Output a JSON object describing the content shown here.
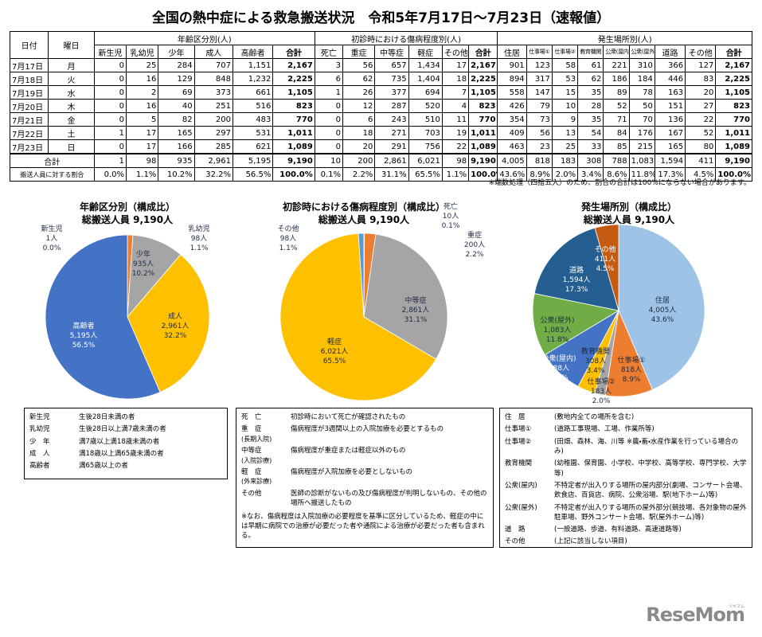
{
  "title": "全国の熱中症による救急搬送状況　令和5年7月17日～7月23日（速報値）",
  "table": {
    "corner": [
      "日付",
      "曜日"
    ],
    "groups": [
      {
        "label": "年齢区分別(人)",
        "columns": [
          "新生児",
          "乳幼児",
          "少年",
          "成人",
          "高齢者",
          "合計"
        ]
      },
      {
        "label": "初診時における傷病程度別(人)",
        "columns": [
          "死亡",
          "重症",
          "中等症",
          "軽症",
          "その他",
          "合計"
        ]
      },
      {
        "label": "発生場所別(人)",
        "columns": [
          "住居",
          "仕事場①",
          "仕事場②",
          "教育機関",
          "公衆(屋内)",
          "公衆(屋外)",
          "道路",
          "その他",
          "合計"
        ]
      }
    ],
    "rows": [
      {
        "date": "7月17日",
        "weekday": "月",
        "values": [
          "0",
          "25",
          "284",
          "707",
          "1,151",
          "2,167",
          "3",
          "56",
          "657",
          "1,434",
          "17",
          "2,167",
          "901",
          "123",
          "58",
          "61",
          "221",
          "310",
          "366",
          "127",
          "2,167"
        ]
      },
      {
        "date": "7月18日",
        "weekday": "火",
        "values": [
          "0",
          "16",
          "129",
          "848",
          "1,232",
          "2,225",
          "6",
          "62",
          "735",
          "1,404",
          "18",
          "2,225",
          "894",
          "317",
          "53",
          "62",
          "186",
          "184",
          "446",
          "83",
          "2,225"
        ]
      },
      {
        "date": "7月19日",
        "weekday": "水",
        "values": [
          "0",
          "2",
          "69",
          "373",
          "661",
          "1,105",
          "1",
          "26",
          "377",
          "694",
          "7",
          "1,105",
          "558",
          "147",
          "15",
          "35",
          "89",
          "78",
          "163",
          "20",
          "1,105"
        ]
      },
      {
        "date": "7月20日",
        "weekday": "木",
        "values": [
          "0",
          "16",
          "40",
          "251",
          "516",
          "823",
          "0",
          "12",
          "287",
          "520",
          "4",
          "823",
          "426",
          "79",
          "10",
          "28",
          "52",
          "50",
          "151",
          "27",
          "823"
        ]
      },
      {
        "date": "7月21日",
        "weekday": "金",
        "values": [
          "0",
          "5",
          "82",
          "200",
          "483",
          "770",
          "0",
          "6",
          "243",
          "510",
          "11",
          "770",
          "354",
          "73",
          "9",
          "35",
          "71",
          "70",
          "136",
          "22",
          "770"
        ]
      },
      {
        "date": "7月22日",
        "weekday": "土",
        "values": [
          "1",
          "17",
          "165",
          "297",
          "531",
          "1,011",
          "0",
          "18",
          "271",
          "703",
          "19",
          "1,011",
          "409",
          "56",
          "13",
          "54",
          "84",
          "176",
          "167",
          "52",
          "1,011"
        ]
      },
      {
        "date": "7月23日",
        "weekday": "日",
        "values": [
          "0",
          "17",
          "166",
          "285",
          "621",
          "1,089",
          "0",
          "20",
          "291",
          "756",
          "22",
          "1,089",
          "463",
          "23",
          "25",
          "33",
          "85",
          "215",
          "165",
          "80",
          "1,089"
        ]
      }
    ],
    "total": {
      "label": "合計",
      "values": [
        "1",
        "98",
        "935",
        "2,961",
        "5,195",
        "9,190",
        "10",
        "200",
        "2,861",
        "6,021",
        "98",
        "9,190",
        "4,005",
        "818",
        "183",
        "308",
        "788",
        "1,083",
        "1,594",
        "411",
        "9,190"
      ]
    },
    "share": {
      "label": "搬送人員に対する割合",
      "values": [
        "0.0%",
        "1.1%",
        "10.2%",
        "32.2%",
        "56.5%",
        "100.0%",
        "0.1%",
        "2.2%",
        "31.1%",
        "65.5%",
        "1.1%",
        "100.0%",
        "43.6%",
        "8.9%",
        "2.0%",
        "3.4%",
        "8.6%",
        "11.8%",
        "17.3%",
        "4.5%",
        "100.0%"
      ]
    }
  },
  "note": "※端数処理（四捨五入）のため、割合の合計は100%にならない場合があります。",
  "chart_data": [
    {
      "type": "pie",
      "title": "年齢区分別（構成比）",
      "subtitle": "総搬送人員 9,190人",
      "categories": [
        "新生児",
        "乳幼児",
        "少年",
        "成人",
        "高齢者"
      ],
      "values": [
        1,
        98,
        935,
        2961,
        5195
      ],
      "value_labels": [
        "1人",
        "98人",
        "935人",
        "2,961人",
        "5,195人"
      ],
      "percent_labels": [
        "0.0%",
        "1.1%",
        "10.2%",
        "32.2%",
        "56.5%"
      ],
      "colors": [
        "#a5a5a5",
        "#ed7d31",
        "#a5a5a5",
        "#ffc000",
        "#4472c4"
      ]
    },
    {
      "type": "pie",
      "title": "初診時における傷病程度別（構成比）",
      "subtitle": "総搬送人員 9,190人",
      "categories": [
        "死亡",
        "重症",
        "中等症",
        "軽症",
        "その他"
      ],
      "values": [
        10,
        200,
        2861,
        6021,
        98
      ],
      "value_labels": [
        "10人",
        "200人",
        "2,861人",
        "6,021人",
        "98人"
      ],
      "percent_labels": [
        "0.1%",
        "2.2%",
        "31.1%",
        "65.5%",
        "1.1%"
      ],
      "colors": [
        "#4472c4",
        "#ed7d31",
        "#a5a5a5",
        "#ffc000",
        "#5b9bd5"
      ]
    },
    {
      "type": "pie",
      "title": "発生場所別（構成比）",
      "subtitle": "総搬送人員 9,190人",
      "categories": [
        "住居",
        "仕事場①",
        "仕事場②",
        "教育機関",
        "公衆(屋内)",
        "公衆(屋外)",
        "道路",
        "その他"
      ],
      "values": [
        4005,
        818,
        183,
        308,
        788,
        1083,
        1594,
        411
      ],
      "value_labels": [
        "4,005人",
        "818人",
        "183人",
        "308人",
        "788人",
        "1,083人",
        "1,594人",
        "411人"
      ],
      "percent_labels": [
        "43.6%",
        "8.9%",
        "2.0%",
        "3.4%",
        "8.6%",
        "11.8%",
        "17.3%",
        "4.5%"
      ],
      "colors": [
        "#9dc3e6",
        "#ed7d31",
        "#a5a5a5",
        "#ffc000",
        "#4472c4",
        "#70ad47",
        "#255e91",
        "#c55a11"
      ]
    }
  ],
  "definitions": [
    {
      "items": [
        {
          "term": "新生児",
          "text": "生後28日未満の者"
        },
        {
          "term": "乳幼児",
          "text": "生後28日以上満7歳未満の者"
        },
        {
          "term": "少　年",
          "text": "満7歳以上満18歳未満の者"
        },
        {
          "term": "成　人",
          "text": "満18歳以上満65歳未満の者"
        },
        {
          "term": "高齢者",
          "text": "満65歳以上の者"
        }
      ]
    },
    {
      "items": [
        {
          "term": "死　亡",
          "text": "初診時において死亡が確認されたもの"
        },
        {
          "term": "重　症",
          "sub": "(長期入院)",
          "text": "傷病程度が3週間以上の入院加療を必要とするもの"
        },
        {
          "term": "中等症",
          "sub": "(入院診療)",
          "text": "傷病程度が重症または軽症以外のもの"
        },
        {
          "term": "軽　症",
          "sub": "(外来診療)",
          "text": "傷病程度が入院加療を必要としないもの"
        },
        {
          "term": "その他",
          "text": "医師の診断がないもの及び傷病程度が判明しないもの、その他の場所へ搬送したもの"
        }
      ],
      "note": "※なお、傷病程度は入院加療の必要程度を基準に区分しているため、軽症の中には早期に病院での治療が必要だった者や通院による治療が必要だった者も含まれる。"
    },
    {
      "items": [
        {
          "term": "住　居",
          "text": "(敷地内全ての場所を含む)"
        },
        {
          "term": "仕事場①",
          "text": "(道路工事現場、工場、作業所等)"
        },
        {
          "term": "仕事場②",
          "text": "(田畑、森林、海、川等 ※農・畜・水産作業を行っている場合のみ)"
        },
        {
          "term": "教育機関",
          "text": "(幼稚園、保育園、小学校、中学校、高等学校、専門学校、大学等)"
        },
        {
          "term": "公衆(屋内)",
          "text": "不特定者が出入りする場所の屋内部分(劇場、コンサート会場、飲食店、百貨店、病院、公衆浴場、駅(地下ホーム)等)"
        },
        {
          "term": "公衆(屋外)",
          "text": "不特定者が出入りする場所の屋外部分(競技場、各対象物の屋外駐車場、野外コンサート会場、駅(屋外ホーム)等)"
        },
        {
          "term": "道　路",
          "text": "(一般道路、歩道、有料道路、高速道路等)"
        },
        {
          "term": "その他",
          "text": "(上記に該当しない項目)"
        }
      ]
    }
  ],
  "logo": {
    "name": "ReseMom",
    "kana": "リセマム"
  }
}
